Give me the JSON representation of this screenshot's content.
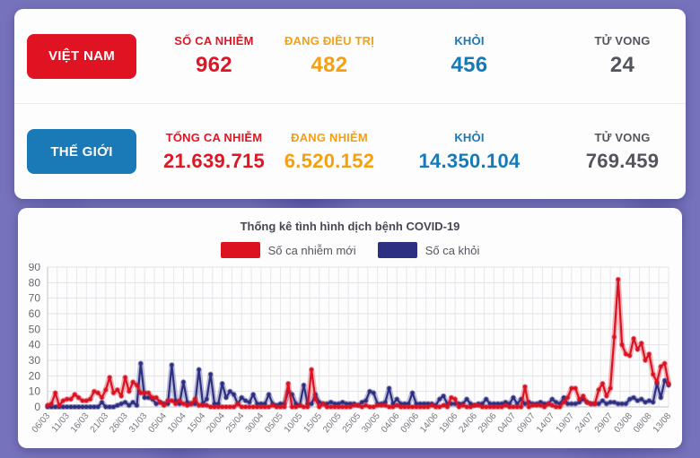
{
  "summary": {
    "rows": [
      {
        "badge": "VIỆT NAM",
        "badge_color": "#e01322",
        "stats": [
          {
            "label": "SỐ CA NHIỄM",
            "value": "962",
            "color": "#df1624"
          },
          {
            "label": "ĐANG ĐIỀU TRỊ",
            "value": "482",
            "color": "#f6a010"
          },
          {
            "label": "KHỎI",
            "value": "456",
            "color": "#177ab8"
          },
          {
            "label": "TỬ VONG",
            "value": "24",
            "color": "#54555c"
          }
        ]
      },
      {
        "badge": "THẾ GIỚI",
        "badge_color": "#1a79b7",
        "stats": [
          {
            "label": "TỔNG CA NHIỄM",
            "value": "21.639.715",
            "color": "#df1624"
          },
          {
            "label": "ĐANG NHIỄM",
            "value": "6.520.152",
            "color": "#f6a010"
          },
          {
            "label": "KHỎI",
            "value": "14.350.104",
            "color": "#177ab8"
          },
          {
            "label": "TỬ VONG",
            "value": "769.459",
            "color": "#54555c"
          }
        ]
      }
    ]
  },
  "chart_data": {
    "type": "line",
    "title": "Thống kê tình hình dịch bệnh COVID-19",
    "xlabel": "",
    "ylabel": "",
    "ylim": [
      0,
      90
    ],
    "y_ticks": [
      90,
      80,
      70,
      60,
      50,
      40,
      30,
      20,
      10,
      0
    ],
    "grid": true,
    "legend_position": "top",
    "x_unit": "day",
    "x_start": "06/03",
    "x_end": "13/08",
    "x_tick_every_days": 5,
    "x_tick_labels": [
      "06/03",
      "11/03",
      "16/03",
      "21/03",
      "26/03",
      "31/03",
      "05/04",
      "10/04",
      "15/04",
      "20/04",
      "25/04",
      "30/04",
      "05/05",
      "10/05",
      "15/05",
      "20/05",
      "25/05",
      "30/05",
      "04/06",
      "09/06",
      "14/06",
      "19/06",
      "24/06",
      "29/06",
      "04/07",
      "09/07",
      "14/07",
      "19/07",
      "24/07",
      "29/07",
      "03/08",
      "08/08",
      "13/08"
    ],
    "series": [
      {
        "name": "Số ca nhiễm mới",
        "color": "#dc1220",
        "values": [
          1,
          2,
          9,
          1,
          4,
          5,
          5,
          8,
          6,
          4,
          4,
          5,
          10,
          9,
          6,
          11,
          19,
          9,
          11,
          7,
          19,
          10,
          16,
          14,
          9,
          9,
          9,
          6,
          6,
          3,
          1,
          4,
          4,
          2,
          4,
          2,
          1,
          2,
          5,
          1,
          1,
          1,
          0,
          0,
          0,
          0,
          0,
          0,
          0,
          2,
          0,
          0,
          0,
          0,
          0,
          0,
          0,
          0,
          1,
          0,
          0,
          0,
          15,
          0,
          0,
          1,
          0,
          0,
          24,
          5,
          0,
          2,
          0,
          0,
          0,
          0,
          0,
          0,
          0,
          1,
          1,
          0,
          1,
          0,
          0,
          1,
          1,
          1,
          0,
          0,
          1,
          0,
          0,
          0,
          0,
          0,
          0,
          0,
          0,
          1,
          0,
          0,
          1,
          0,
          6,
          5,
          0,
          1,
          0,
          0,
          1,
          1,
          0,
          0,
          0,
          0,
          0,
          0,
          1,
          0,
          0,
          0,
          0,
          13,
          0,
          1,
          1,
          1,
          0,
          2,
          1,
          0,
          0,
          3,
          6,
          12,
          12,
          5,
          7,
          3,
          2,
          2,
          11,
          15,
          7,
          12,
          45,
          82,
          40,
          34,
          33,
          44,
          37,
          41,
          30,
          34,
          21,
          16,
          26,
          28,
          15
        ]
      },
      {
        "name": "Số ca khỏi",
        "color": "#2d2f82",
        "values": [
          0,
          0,
          0,
          0,
          0,
          0,
          0,
          0,
          0,
          0,
          0,
          0,
          0,
          0,
          3,
          0,
          0,
          0,
          1,
          2,
          3,
          1,
          3,
          1,
          28,
          6,
          6,
          5,
          2,
          3,
          2,
          2,
          27,
          4,
          2,
          16,
          3,
          2,
          2,
          24,
          2,
          5,
          21,
          2,
          2,
          15,
          6,
          10,
          8,
          2,
          6,
          4,
          3,
          8,
          2,
          2,
          2,
          8,
          2,
          1,
          2,
          2,
          10,
          8,
          2,
          1,
          14,
          2,
          2,
          8,
          3,
          2,
          2,
          3,
          2,
          2,
          3,
          2,
          2,
          2,
          1,
          3,
          4,
          10,
          9,
          2,
          2,
          3,
          12,
          2,
          5,
          2,
          2,
          2,
          9,
          2,
          2,
          2,
          2,
          2,
          1,
          5,
          7,
          2,
          2,
          2,
          2,
          2,
          5,
          2,
          1,
          2,
          2,
          5,
          2,
          2,
          2,
          2,
          3,
          2,
          6,
          2,
          5,
          2,
          3,
          2,
          2,
          3,
          2,
          2,
          5,
          3,
          2,
          6,
          2,
          2,
          2,
          3,
          5,
          3,
          2,
          2,
          2,
          4,
          2,
          3,
          3,
          2,
          2,
          2,
          5,
          6,
          4,
          5,
          3,
          4,
          3,
          15,
          6,
          17,
          14
        ]
      }
    ]
  }
}
